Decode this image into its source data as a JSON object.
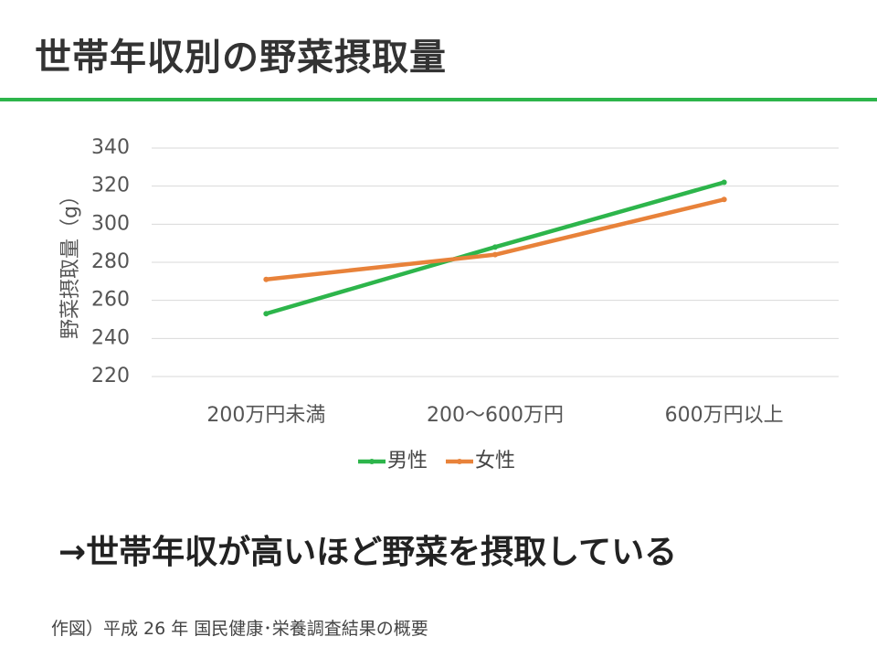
{
  "slide": {
    "title": "世帯年収別の野菜摂取量",
    "conclusion": "→世帯年収が高いほど野菜を摂取している",
    "source": "作図）平成 26 年 国民健康･栄養調査結果の概要"
  },
  "colors": {
    "accent": "#2db54b",
    "male": "#2db54b",
    "female": "#e8823a",
    "grid": "#d9d9d9"
  },
  "chart_data": {
    "type": "line",
    "categories": [
      "200万円未満",
      "200～600万円",
      "600万円以上"
    ],
    "series": [
      {
        "name": "男性",
        "values": [
          253,
          288,
          322
        ]
      },
      {
        "name": "女性",
        "values": [
          271,
          284,
          313
        ]
      }
    ],
    "title": "",
    "xlabel": "",
    "ylabel": "野菜摂取量（g）",
    "ylim": [
      220,
      340
    ],
    "yticks": [
      220,
      240,
      260,
      280,
      300,
      320,
      340
    ],
    "grid": true,
    "legend": "bottom"
  }
}
